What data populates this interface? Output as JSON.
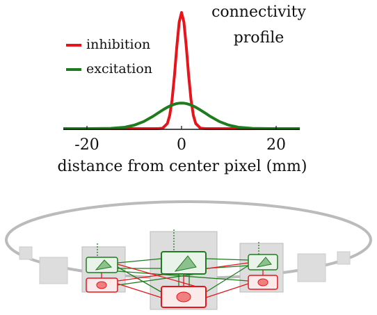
{
  "chart_data": {
    "type": "line",
    "title": "connectivity profile",
    "xlabel": "distance from center pixel (mm)",
    "x": [
      -25,
      -20,
      -15,
      -12,
      -10,
      -8,
      -6,
      -5,
      -4,
      -3,
      -2.5,
      -2,
      -1.5,
      -1,
      -0.5,
      0,
      0.5,
      1,
      1.5,
      2,
      2.5,
      3,
      4,
      5,
      6,
      8,
      10,
      12,
      15,
      20,
      25
    ],
    "series": [
      {
        "name": "inhibition",
        "color": "#e8141c",
        "values": [
          0,
          0,
          0,
          0,
          0,
          0,
          0,
          0,
          0.004,
          0.044,
          0.114,
          0.249,
          0.458,
          0.707,
          0.917,
          1,
          0.917,
          0.707,
          0.458,
          0.249,
          0.114,
          0.044,
          0.004,
          0,
          0,
          0,
          0,
          0,
          0,
          0,
          0
        ]
      },
      {
        "name": "excitation",
        "color": "#1e7b1e",
        "values": [
          0,
          0,
          0.002,
          0.012,
          0.03,
          0.061,
          0.107,
          0.134,
          0.16,
          0.184,
          0.194,
          0.203,
          0.21,
          0.216,
          0.219,
          0.22,
          0.219,
          0.216,
          0.21,
          0.203,
          0.194,
          0.184,
          0.16,
          0.134,
          0.107,
          0.061,
          0.03,
          0.012,
          0.002,
          0,
          0
        ]
      }
    ],
    "xlim": [
      -25,
      25
    ],
    "xticks": [
      -20,
      0,
      20
    ],
    "ylim": [
      0,
      1
    ]
  }
}
